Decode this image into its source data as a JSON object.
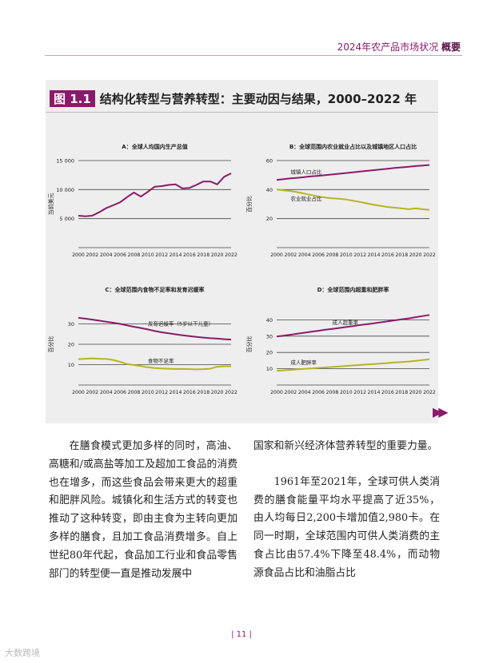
{
  "header": {
    "title": "2024年农产品市场状况",
    "section": "概要"
  },
  "figure": {
    "tag": "图 1.1",
    "title": "结构化转型与营养转型：主要动因与结果，2000–2022 年"
  },
  "chart_data": [
    {
      "id": "A",
      "type": "line",
      "title": "A：全球人均国内生产总值",
      "ylabel": "当前美元",
      "xlabel": "",
      "x": [
        2000,
        2001,
        2002,
        2003,
        2004,
        2005,
        2006,
        2007,
        2008,
        2009,
        2010,
        2011,
        2012,
        2013,
        2014,
        2015,
        2016,
        2017,
        2018,
        2019,
        2020,
        2021,
        2022
      ],
      "ylim": [
        0,
        15000
      ],
      "yticks": [
        {
          "v": 5000,
          "label": "5 000"
        },
        {
          "v": 10000,
          "label": "10 000"
        },
        {
          "v": 15000,
          "label": "15 000"
        }
      ],
      "series": [
        {
          "name": "人均国内生产总值",
          "color": "#8b1a6b",
          "values": [
            5500,
            5400,
            5500,
            6100,
            6800,
            7300,
            7800,
            8700,
            9500,
            8800,
            9600,
            10500,
            10600,
            10800,
            10900,
            10200,
            10300,
            10800,
            11400,
            11400,
            10900,
            12200,
            12800
          ]
        }
      ],
      "annotations": []
    },
    {
      "id": "B",
      "type": "line",
      "title": "B：全球范围内农业就业占比以及城镇地区人口占比",
      "ylabel": "百分比",
      "xlabel": "",
      "x": [
        2000,
        2001,
        2002,
        2003,
        2004,
        2005,
        2006,
        2007,
        2008,
        2009,
        2010,
        2011,
        2012,
        2013,
        2014,
        2015,
        2016,
        2017,
        2018,
        2019,
        2020,
        2021,
        2022
      ],
      "ylim": [
        0,
        60
      ],
      "yticks": [
        {
          "v": 20,
          "label": "20"
        },
        {
          "v": 40,
          "label": "40"
        },
        {
          "v": 60,
          "label": "60"
        }
      ],
      "series": [
        {
          "name": "城镇人口占比",
          "color": "#8b1a6b",
          "values": [
            46.7,
            47.2,
            47.7,
            48.1,
            48.6,
            49.1,
            49.5,
            50.0,
            50.4,
            50.9,
            51.4,
            51.9,
            52.4,
            52.9,
            53.4,
            53.9,
            54.4,
            54.9,
            55.3,
            55.7,
            56.2,
            56.6,
            57.0
          ]
        },
        {
          "name": "农业就业占比",
          "color": "#b5b521",
          "values": [
            40.0,
            39.5,
            39.0,
            38.2,
            37.2,
            36.2,
            35.2,
            34.5,
            34.0,
            33.7,
            33.2,
            32.3,
            31.5,
            30.5,
            29.5,
            28.8,
            28.0,
            27.5,
            27.0,
            26.5,
            27.0,
            26.5,
            26.0
          ]
        }
      ],
      "annotations": [
        "城镇人口占比",
        "农业就业占比"
      ]
    },
    {
      "id": "C",
      "type": "line",
      "title": "C：全球范围内食物不足率和发育迟缓率",
      "ylabel": "百分比",
      "xlabel": "",
      "x": [
        2000,
        2001,
        2002,
        2003,
        2004,
        2005,
        2006,
        2007,
        2008,
        2009,
        2010,
        2011,
        2012,
        2013,
        2014,
        2015,
        2016,
        2017,
        2018,
        2019,
        2020,
        2021,
        2022
      ],
      "ylim": [
        0,
        40
      ],
      "yticks": [
        {
          "v": 10,
          "label": "10"
        },
        {
          "v": 20,
          "label": "20"
        },
        {
          "v": 30,
          "label": "30"
        }
      ],
      "series": [
        {
          "name": "发育迟缓率（5岁以下儿童）",
          "color": "#8b1a6b",
          "values": [
            33.0,
            32.6,
            32.1,
            31.6,
            31.1,
            30.6,
            30.0,
            29.3,
            28.6,
            28.0,
            27.3,
            26.5,
            25.9,
            25.4,
            24.9,
            24.4,
            24.0,
            23.6,
            23.3,
            23.0,
            22.8,
            22.5,
            22.3
          ]
        },
        {
          "name": "食物不足率",
          "color": "#b5b521",
          "values": [
            12.7,
            12.9,
            13.1,
            12.9,
            12.8,
            12.3,
            11.4,
            10.3,
            9.8,
            9.3,
            8.7,
            8.3,
            8.1,
            8.0,
            7.9,
            7.9,
            7.8,
            7.7,
            7.8,
            8.0,
            9.0,
            9.2,
            9.2
          ]
        }
      ],
      "annotations": [
        "发育迟缓率（5岁以下儿童）",
        "食物不足率"
      ]
    },
    {
      "id": "D",
      "type": "line",
      "title": "D：全球范围内超重和肥胖率",
      "ylabel": "百分比",
      "xlabel": "",
      "x": [
        2000,
        2001,
        2002,
        2003,
        2004,
        2005,
        2006,
        2007,
        2008,
        2009,
        2010,
        2011,
        2012,
        2013,
        2014,
        2015,
        2016,
        2017,
        2018,
        2019,
        2020,
        2021,
        2022
      ],
      "ylim": [
        0,
        50
      ],
      "yticks": [
        {
          "v": 10,
          "label": "10"
        },
        {
          "v": 20,
          "label": "20"
        },
        {
          "v": 30,
          "label": "30"
        },
        {
          "v": 40,
          "label": "40"
        }
      ],
      "series": [
        {
          "name": "成人超重率",
          "color": "#8b1a6b",
          "values": [
            29.8,
            30.3,
            30.9,
            31.5,
            32.1,
            32.7,
            33.3,
            33.9,
            34.4,
            35.0,
            35.6,
            36.2,
            36.8,
            37.3,
            37.9,
            38.5,
            39.1,
            39.7,
            40.3,
            40.9,
            41.6,
            42.3,
            43.0
          ]
        },
        {
          "name": "成人肥胖率",
          "color": "#b5b521",
          "values": [
            8.7,
            9.0,
            9.3,
            9.6,
            9.9,
            10.2,
            10.5,
            10.8,
            11.1,
            11.4,
            11.7,
            12.0,
            12.3,
            12.6,
            12.9,
            13.2,
            13.5,
            13.8,
            14.1,
            14.4,
            14.8,
            15.3,
            15.8
          ]
        }
      ],
      "annotations": [
        "成人超重率",
        "成人肥胖率"
      ]
    }
  ],
  "body": {
    "left_p1": "在膳食模式更加多样的同时，高油、高糖和/或高盐等加工及超加工食品的消费也在增多，而这些食品会带来更大的超重和肥胖风险。城镇化和生活方式的转变也推动了这种转变，即由主食为主转向更加多样的膳食，且加工食品消费增多。自上世纪80年代起，食品加工行业和食品零售部门的转型便一直是推动发展中",
    "right_p1": "国家和新兴经济体营养转型的重要力量。",
    "right_p2": "1961年至2021年，全球可供人类消费的膳食能量平均水平提高了近35%，由人均每日2,200卡增加值2,980卡。在同一时期，全球范围内可供人类消费的主食占比由57.4%下降至48.4%，而动物源食品占比和油脂占比"
  },
  "page_number": "| 11 |",
  "watermark": "大数跨境"
}
